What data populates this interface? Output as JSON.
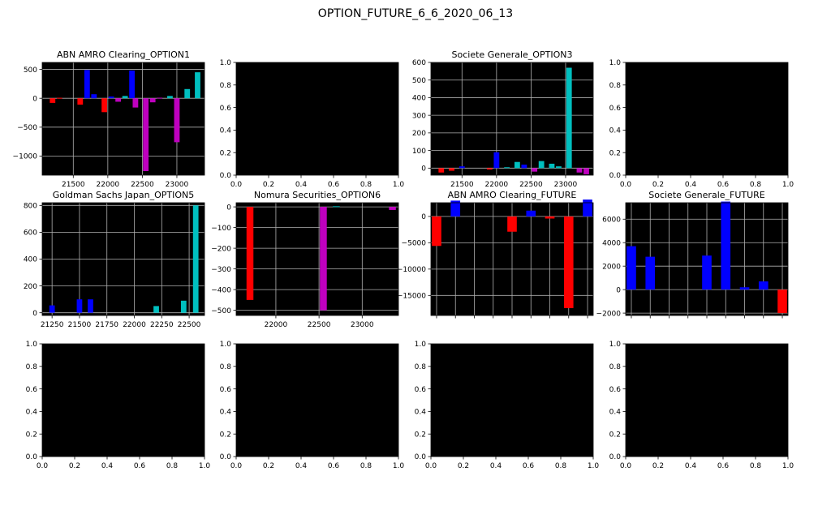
{
  "figure": {
    "title": "OPTION_FUTURE_6_6_2020_06_13"
  },
  "colors": {
    "background": "#000000",
    "grid": "#b0b0b0",
    "red": "#ff0000",
    "blue": "#0000ff",
    "magenta": "#bf00bf",
    "cyan": "#00bfbf"
  },
  "chart_data": [
    {
      "type": "bar",
      "title": "ABN AMRO Clearing_OPTION1",
      "xlim": [
        21050,
        23400
      ],
      "ylim": [
        -1330,
        620
      ],
      "xticks": [
        21500,
        22000,
        22500,
        23000
      ],
      "xtick_labels": [
        "21500",
        "22000",
        "22500",
        "23000"
      ],
      "yticks": [
        500,
        0,
        -500,
        -1000
      ],
      "ytick_labels": [
        "500",
        "0",
        "−500",
        "−1000"
      ],
      "bar_width": 80,
      "bars": [
        {
          "x": 21200,
          "y": -80,
          "color": "red"
        },
        {
          "x": 21300,
          "y": 8,
          "color": "red"
        },
        {
          "x": 21600,
          "y": -110,
          "color": "red"
        },
        {
          "x": 21700,
          "y": 490,
          "color": "blue"
        },
        {
          "x": 21800,
          "y": 70,
          "color": "blue"
        },
        {
          "x": 21950,
          "y": -240,
          "color": "red"
        },
        {
          "x": 22050,
          "y": 30,
          "color": "blue"
        },
        {
          "x": 22150,
          "y": -60,
          "color": "magenta"
        },
        {
          "x": 22250,
          "y": 40,
          "color": "cyan"
        },
        {
          "x": 22350,
          "y": 480,
          "color": "blue"
        },
        {
          "x": 22400,
          "y": -160,
          "color": "magenta"
        },
        {
          "x": 22550,
          "y": -1260,
          "color": "magenta"
        },
        {
          "x": 22650,
          "y": -70,
          "color": "magenta"
        },
        {
          "x": 22750,
          "y": 10,
          "color": "magenta"
        },
        {
          "x": 22900,
          "y": 40,
          "color": "cyan"
        },
        {
          "x": 23000,
          "y": -760,
          "color": "magenta"
        },
        {
          "x": 23150,
          "y": 160,
          "color": "cyan"
        },
        {
          "x": 23300,
          "y": 450,
          "color": "cyan"
        }
      ]
    },
    {
      "type": "bar",
      "title": "",
      "xlim": [
        0,
        1
      ],
      "ylim": [
        0,
        1
      ],
      "xticks": [
        0,
        0.2,
        0.4,
        0.6,
        0.8,
        1.0
      ],
      "xtick_labels": [
        "0.0",
        "0.2",
        "0.4",
        "0.6",
        "0.8",
        "1.0"
      ],
      "yticks": [
        0,
        0.2,
        0.4,
        0.6,
        0.8,
        1.0
      ],
      "ytick_labels": [
        "0.0",
        "0.2",
        "0.4",
        "0.6",
        "0.8",
        "1.0"
      ],
      "bar_width": 0,
      "bars": []
    },
    {
      "type": "bar",
      "title": "Societe Generale_OPTION3",
      "xlim": [
        21050,
        23400
      ],
      "ylim": [
        -40,
        600
      ],
      "xticks": [
        21500,
        22000,
        22500,
        23000
      ],
      "xtick_labels": [
        "21500",
        "22000",
        "22500",
        "23000"
      ],
      "yticks": [
        600,
        500,
        400,
        300,
        200,
        100,
        0
      ],
      "ytick_labels": [
        "600",
        "500",
        "400",
        "300",
        "200",
        "100",
        "0"
      ],
      "bar_width": 80,
      "bars": [
        {
          "x": 21200,
          "y": -25,
          "color": "red"
        },
        {
          "x": 21350,
          "y": -15,
          "color": "red"
        },
        {
          "x": 21500,
          "y": 10,
          "color": "blue"
        },
        {
          "x": 21900,
          "y": -8,
          "color": "red"
        },
        {
          "x": 22000,
          "y": 90,
          "color": "blue"
        },
        {
          "x": 22150,
          "y": 5,
          "color": "cyan"
        },
        {
          "x": 22300,
          "y": 35,
          "color": "cyan"
        },
        {
          "x": 22400,
          "y": 20,
          "color": "blue"
        },
        {
          "x": 22550,
          "y": -20,
          "color": "magenta"
        },
        {
          "x": 22650,
          "y": 40,
          "color": "cyan"
        },
        {
          "x": 22800,
          "y": 25,
          "color": "cyan"
        },
        {
          "x": 22900,
          "y": 10,
          "color": "cyan"
        },
        {
          "x": 23050,
          "y": 570,
          "color": "cyan"
        },
        {
          "x": 23200,
          "y": -25,
          "color": "magenta"
        },
        {
          "x": 23300,
          "y": -35,
          "color": "magenta"
        }
      ]
    },
    {
      "type": "bar",
      "title": "",
      "xlim": [
        0,
        1
      ],
      "ylim": [
        0,
        1
      ],
      "xticks": [
        0,
        0.2,
        0.4,
        0.6,
        0.8,
        1.0
      ],
      "xtick_labels": [
        "0.0",
        "0.2",
        "0.4",
        "0.6",
        "0.8",
        "1.0"
      ],
      "yticks": [
        0,
        0.2,
        0.4,
        0.6,
        0.8,
        1.0
      ],
      "ytick_labels": [
        "0.0",
        "0.2",
        "0.4",
        "0.6",
        "0.8",
        "1.0"
      ],
      "bar_width": 0,
      "bars": []
    },
    {
      "type": "bar",
      "title": "Goldman Sachs Japan_OPTION5",
      "xlim": [
        21160,
        22640
      ],
      "ylim": [
        -20,
        820
      ],
      "xticks": [
        21250,
        21500,
        21750,
        22000,
        22250,
        22500
      ],
      "xtick_labels": [
        "21250",
        "21500",
        "21750",
        "22000",
        "22250",
        "22500"
      ],
      "yticks": [
        800,
        600,
        400,
        200,
        0
      ],
      "ytick_labels": [
        "800",
        "600",
        "400",
        "200",
        "0"
      ],
      "bar_width": 50,
      "bars": [
        {
          "x": 21250,
          "y": 55,
          "color": "blue"
        },
        {
          "x": 21500,
          "y": 100,
          "color": "blue"
        },
        {
          "x": 21600,
          "y": 100,
          "color": "blue"
        },
        {
          "x": 22200,
          "y": 50,
          "color": "cyan"
        },
        {
          "x": 22450,
          "y": 90,
          "color": "cyan"
        },
        {
          "x": 22560,
          "y": 800,
          "color": "cyan"
        }
      ]
    },
    {
      "type": "bar",
      "title": "Nomura Securities_OPTION6",
      "xlim": [
        21540,
        23420
      ],
      "ylim": [
        -525,
        20
      ],
      "xticks": [
        22000,
        22500,
        23000
      ],
      "xtick_labels": [
        "22000",
        "22500",
        "23000"
      ],
      "yticks": [
        0,
        -100,
        -200,
        -300,
        -400,
        -500
      ],
      "ytick_labels": [
        "0",
        "−100",
        "−200",
        "−300",
        "−400",
        "−500"
      ],
      "bar_width": 80,
      "bars": [
        {
          "x": 21700,
          "y": -450,
          "color": "red"
        },
        {
          "x": 22550,
          "y": -500,
          "color": "magenta"
        },
        {
          "x": 22700,
          "y": 3,
          "color": "cyan"
        },
        {
          "x": 23350,
          "y": -15,
          "color": "magenta"
        }
      ]
    },
    {
      "type": "bar",
      "title": "ABN AMRO Clearing_FUTURE",
      "xlim": [
        -0.3,
        8.3
      ],
      "ylim": [
        -18800,
        2600
      ],
      "xticks": [
        0,
        1,
        2,
        3,
        4,
        5,
        6,
        7,
        8
      ],
      "xtick_labels": [],
      "yticks": [
        0,
        -5000,
        -10000,
        -15000
      ],
      "ytick_labels": [
        "0",
        "−5000",
        "−10000",
        "−15000"
      ],
      "bar_width": 0.5,
      "bars": [
        {
          "x": 0,
          "y": -5600,
          "color": "red"
        },
        {
          "x": 1,
          "y": 3000,
          "color": "blue"
        },
        {
          "x": 4,
          "y": -2900,
          "color": "red"
        },
        {
          "x": 5,
          "y": 1100,
          "color": "blue"
        },
        {
          "x": 6,
          "y": -400,
          "color": "red"
        },
        {
          "x": 7,
          "y": -17400,
          "color": "red"
        },
        {
          "x": 8,
          "y": 3200,
          "color": "blue"
        }
      ]
    },
    {
      "type": "bar",
      "title": "Societe Generale_FUTURE",
      "xlim": [
        -0.3,
        8.3
      ],
      "ylim": [
        -2200,
        7400
      ],
      "xticks": [
        0,
        1,
        2,
        3,
        4,
        5,
        6,
        7,
        8
      ],
      "xtick_labels": [],
      "yticks": [
        6000,
        4000,
        2000,
        0,
        -2000
      ],
      "ytick_labels": [
        "6000",
        "4000",
        "2000",
        "0",
        "−2000"
      ],
      "bar_width": 0.5,
      "bars": [
        {
          "x": 0,
          "y": 3700,
          "color": "blue"
        },
        {
          "x": 1,
          "y": 2800,
          "color": "blue"
        },
        {
          "x": 4,
          "y": 2900,
          "color": "blue"
        },
        {
          "x": 5,
          "y": 7500,
          "color": "blue"
        },
        {
          "x": 6,
          "y": 200,
          "color": "blue"
        },
        {
          "x": 7,
          "y": 700,
          "color": "blue"
        },
        {
          "x": 8,
          "y": -2000,
          "color": "red"
        }
      ]
    },
    {
      "type": "bar",
      "title": "",
      "xlim": [
        0,
        1
      ],
      "ylim": [
        0,
        1
      ],
      "xticks": [
        0,
        0.2,
        0.4,
        0.6,
        0.8,
        1.0
      ],
      "xtick_labels": [
        "0.0",
        "0.2",
        "0.4",
        "0.6",
        "0.8",
        "1.0"
      ],
      "yticks": [
        0,
        0.2,
        0.4,
        0.6,
        0.8,
        1.0
      ],
      "ytick_labels": [
        "0.0",
        "0.2",
        "0.4",
        "0.6",
        "0.8",
        "1.0"
      ],
      "bar_width": 0,
      "bars": []
    },
    {
      "type": "bar",
      "title": "",
      "xlim": [
        0,
        1
      ],
      "ylim": [
        0,
        1
      ],
      "xticks": [
        0,
        0.2,
        0.4,
        0.6,
        0.8,
        1.0
      ],
      "xtick_labels": [
        "0.0",
        "0.2",
        "0.4",
        "0.6",
        "0.8",
        "1.0"
      ],
      "yticks": [
        0,
        0.2,
        0.4,
        0.6,
        0.8,
        1.0
      ],
      "ytick_labels": [
        "0.0",
        "0.2",
        "0.4",
        "0.6",
        "0.8",
        "1.0"
      ],
      "bar_width": 0,
      "bars": []
    },
    {
      "type": "bar",
      "title": "",
      "xlim": [
        0,
        1
      ],
      "ylim": [
        0,
        1
      ],
      "xticks": [
        0,
        0.2,
        0.4,
        0.6,
        0.8,
        1.0
      ],
      "xtick_labels": [
        "0.0",
        "0.2",
        "0.4",
        "0.6",
        "0.8",
        "1.0"
      ],
      "yticks": [
        0,
        0.2,
        0.4,
        0.6,
        0.8,
        1.0
      ],
      "ytick_labels": [
        "0.0",
        "0.2",
        "0.4",
        "0.6",
        "0.8",
        "1.0"
      ],
      "bar_width": 0,
      "bars": []
    },
    {
      "type": "bar",
      "title": "",
      "xlim": [
        0,
        1
      ],
      "ylim": [
        0,
        1
      ],
      "xticks": [
        0,
        0.2,
        0.4,
        0.6,
        0.8,
        1.0
      ],
      "xtick_labels": [
        "0.0",
        "0.2",
        "0.4",
        "0.6",
        "0.8",
        "1.0"
      ],
      "yticks": [
        0,
        0.2,
        0.4,
        0.6,
        0.8,
        1.0
      ],
      "ytick_labels": [
        "0.0",
        "0.2",
        "0.4",
        "0.6",
        "0.8",
        "1.0"
      ],
      "bar_width": 0,
      "bars": []
    }
  ]
}
